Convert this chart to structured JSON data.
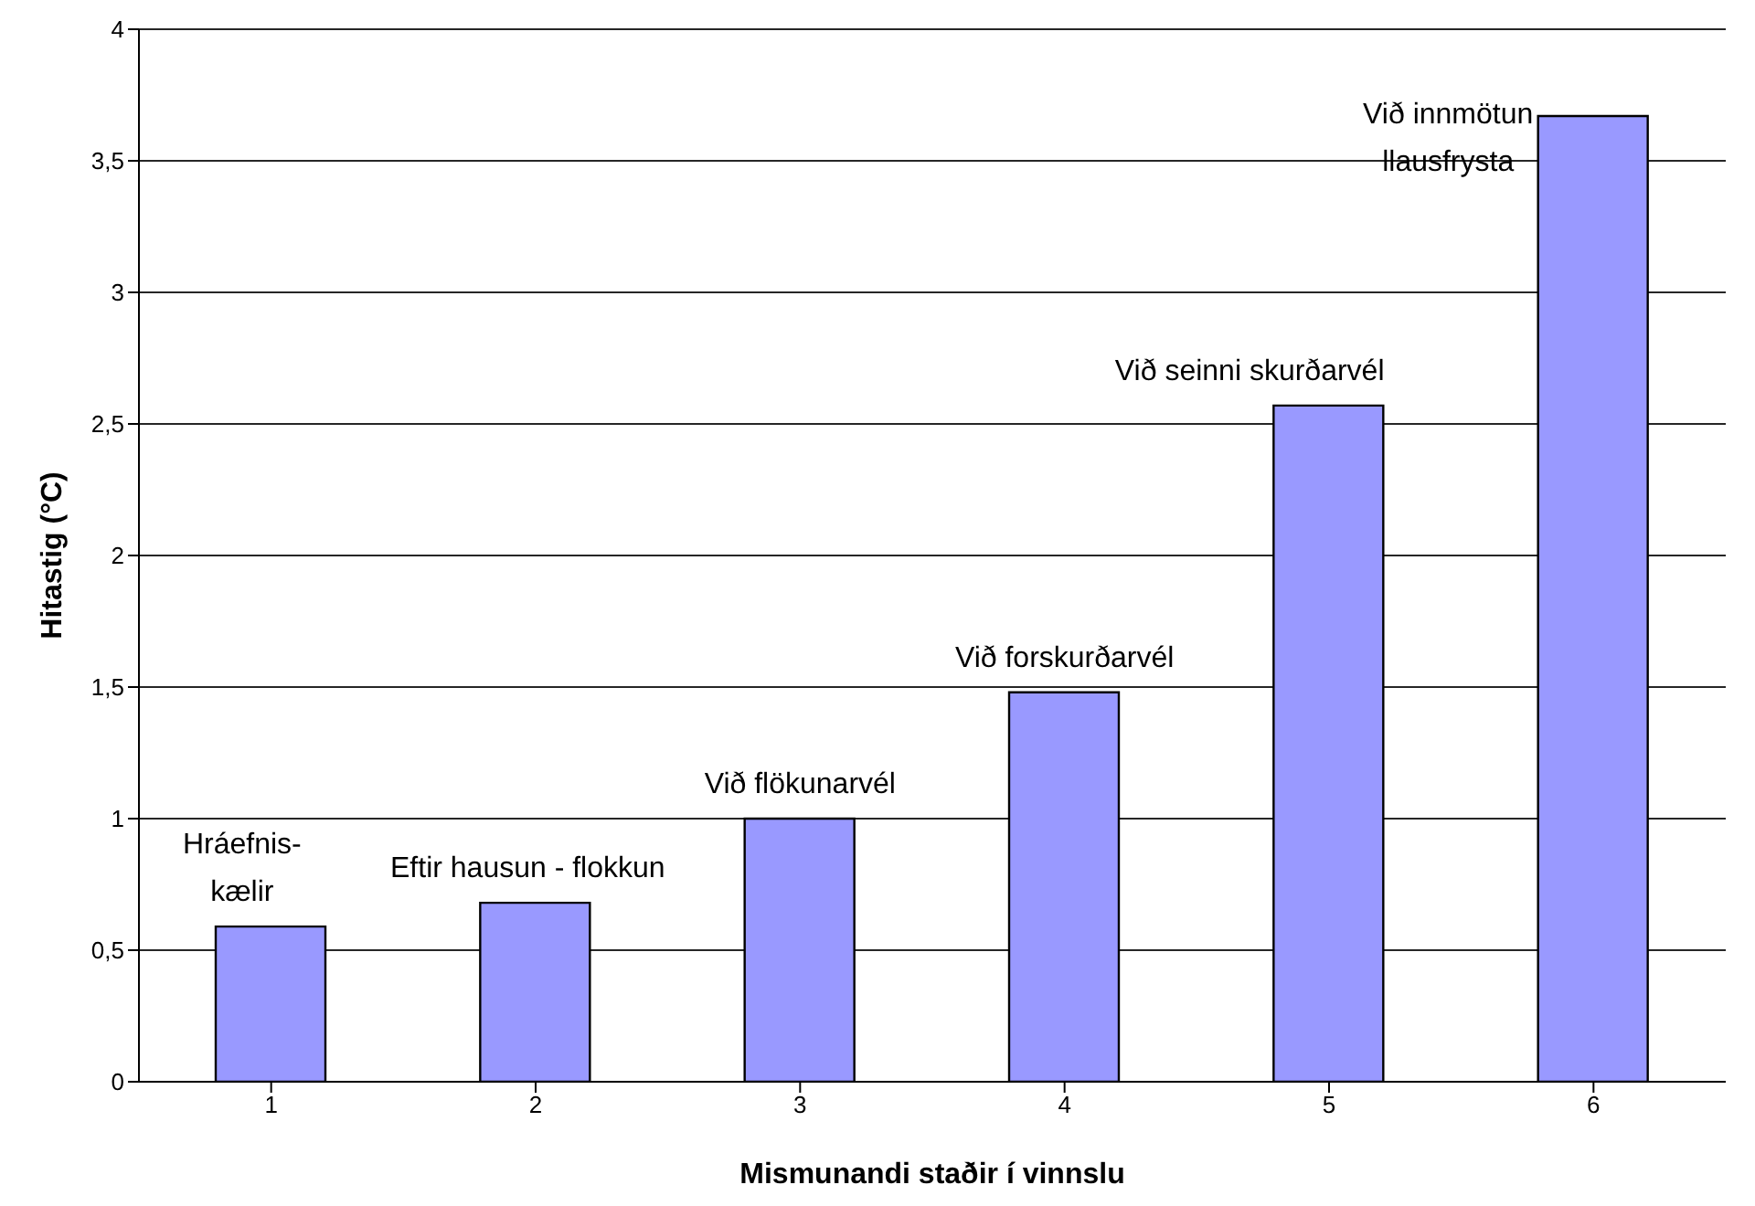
{
  "chart_data": {
    "type": "bar",
    "xlabel": "Mismunandi staðir í vinnslu",
    "ylabel": "Hitastig (°C)",
    "categories": [
      "1",
      "2",
      "3",
      "4",
      "5",
      "6"
    ],
    "values": [
      0.59,
      0.68,
      1.0,
      1.48,
      2.57,
      3.67
    ],
    "color": "#9999ff",
    "ylim": [
      0,
      4
    ],
    "yticks": [
      0,
      {
        "value": 0.5,
        "label": "0,5"
      },
      1,
      {
        "value": 1.5,
        "label": "1,5"
      },
      2,
      {
        "value": 2.5,
        "label": "2,5"
      },
      3,
      {
        "value": 3.5,
        "label": "3,5"
      },
      4
    ],
    "grid": "y",
    "annotations": [
      "Hráefnis-\nkælir",
      "Eftir hausun - flokkun",
      "Við flökunarvél",
      "Við forskurðarvél",
      "Við seinni skurðarvél",
      "Við innmötun\nllausfrysta"
    ]
  }
}
